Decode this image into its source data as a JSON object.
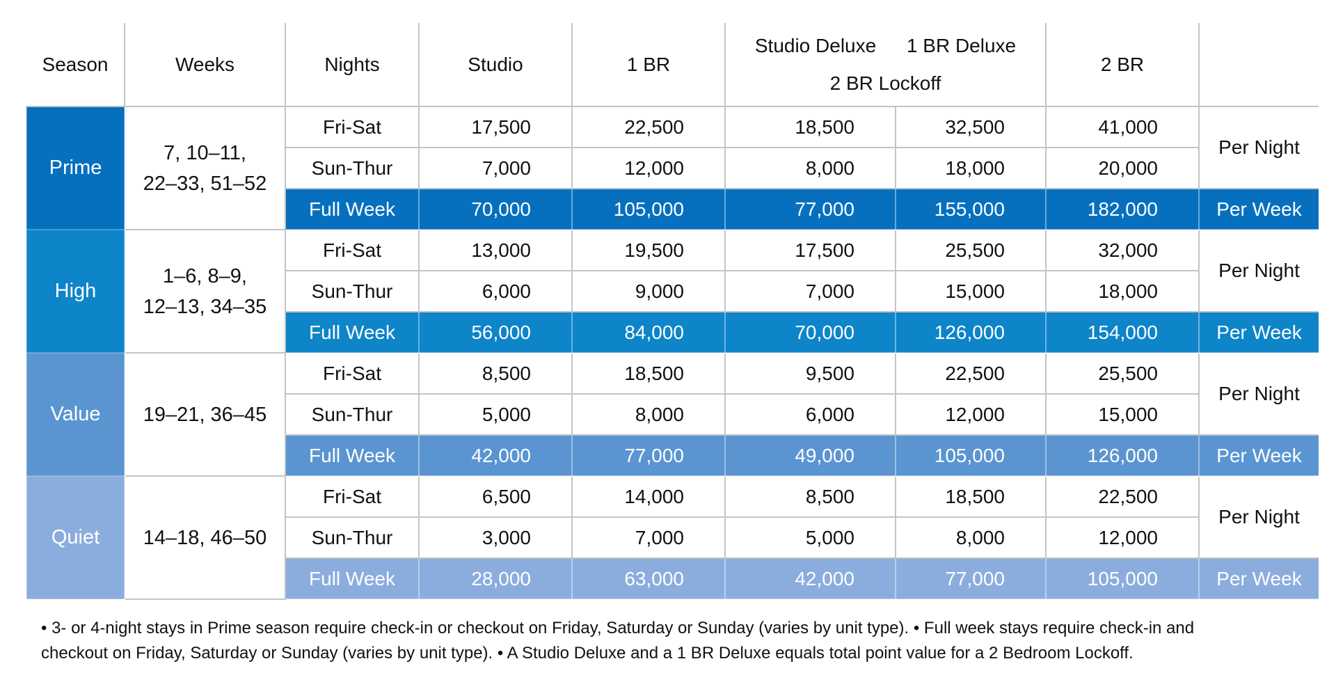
{
  "header": {
    "season": "Season",
    "weeks": "Weeks",
    "nights": "Nights",
    "studio": "Studio",
    "br1": "1 BR",
    "studio_deluxe": "Studio Deluxe",
    "br1_deluxe": "1 BR Deluxe",
    "br2_lockoff": "2 BR Lockoff",
    "br2": "2 BR"
  },
  "seasons": [
    {
      "name": "Prime",
      "weeks_line1": "7, 10–11,",
      "weeks_line2": "22–33, 51–52",
      "color": "#0670bf",
      "rows": [
        {
          "nights": "Fri-Sat",
          "studio": "17,500",
          "br1": "22,500",
          "studio_deluxe": "18,500",
          "br1_deluxe": "32,500",
          "br2": "41,000"
        },
        {
          "nights": "Sun-Thur",
          "studio": "7,000",
          "br1": "12,000",
          "studio_deluxe": "8,000",
          "br1_deluxe": "18,000",
          "br2": "20,000"
        },
        {
          "nights": "Full Week",
          "studio": "70,000",
          "br1": "105,000",
          "studio_deluxe": "77,000",
          "br1_deluxe": "155,000",
          "br2": "182,000"
        }
      ],
      "per_night": "Per Night",
      "per_week": "Per Week"
    },
    {
      "name": "High",
      "weeks_line1": "1–6, 8–9,",
      "weeks_line2": "12–13, 34–35",
      "color": "#0e84c9",
      "rows": [
        {
          "nights": "Fri-Sat",
          "studio": "13,000",
          "br1": "19,500",
          "studio_deluxe": "17,500",
          "br1_deluxe": "25,500",
          "br2": "32,000"
        },
        {
          "nights": "Sun-Thur",
          "studio": "6,000",
          "br1": "9,000",
          "studio_deluxe": "7,000",
          "br1_deluxe": "15,000",
          "br2": "18,000"
        },
        {
          "nights": "Full Week",
          "studio": "56,000",
          "br1": "84,000",
          "studio_deluxe": "70,000",
          "br1_deluxe": "126,000",
          "br2": "154,000"
        }
      ],
      "per_night": "Per Night",
      "per_week": "Per Week"
    },
    {
      "name": "Value",
      "weeks_line1": "19–21, 36–45",
      "weeks_line2": "",
      "color": "#5a95d1",
      "rows": [
        {
          "nights": "Fri-Sat",
          "studio": "8,500",
          "br1": "18,500",
          "studio_deluxe": "9,500",
          "br1_deluxe": "22,500",
          "br2": "25,500"
        },
        {
          "nights": "Sun-Thur",
          "studio": "5,000",
          "br1": "8,000",
          "studio_deluxe": "6,000",
          "br1_deluxe": "12,000",
          "br2": "15,000"
        },
        {
          "nights": "Full Week",
          "studio": "42,000",
          "br1": "77,000",
          "studio_deluxe": "49,000",
          "br1_deluxe": "105,000",
          "br2": "126,000"
        }
      ],
      "per_night": "Per Night",
      "per_week": "Per Week"
    },
    {
      "name": "Quiet",
      "weeks_line1": "14–18, 46–50",
      "weeks_line2": "",
      "color": "#8badde",
      "rows": [
        {
          "nights": "Fri-Sat",
          "studio": "6,500",
          "br1": "14,000",
          "studio_deluxe": "8,500",
          "br1_deluxe": "18,500",
          "br2": "22,500"
        },
        {
          "nights": "Sun-Thur",
          "studio": "3,000",
          "br1": "7,000",
          "studio_deluxe": "5,000",
          "br1_deluxe": "8,000",
          "br2": "12,000"
        },
        {
          "nights": "Full Week",
          "studio": "28,000",
          "br1": "63,000",
          "studio_deluxe": "42,000",
          "br1_deluxe": "77,000",
          "br2": "105,000"
        }
      ],
      "per_night": "Per Night",
      "per_week": "Per Week"
    }
  ],
  "notes": {
    "line1": "• 3- or 4-night stays in Prime season require check-in or checkout on Friday, Saturday or Sunday (varies by unit type). • Full week stays require check-in and",
    "line2": "checkout on Friday, Saturday or Sunday (varies by unit type). • A Studio Deluxe and a 1 BR Deluxe equals total point value for a 2 Bedroom Lockoff."
  }
}
